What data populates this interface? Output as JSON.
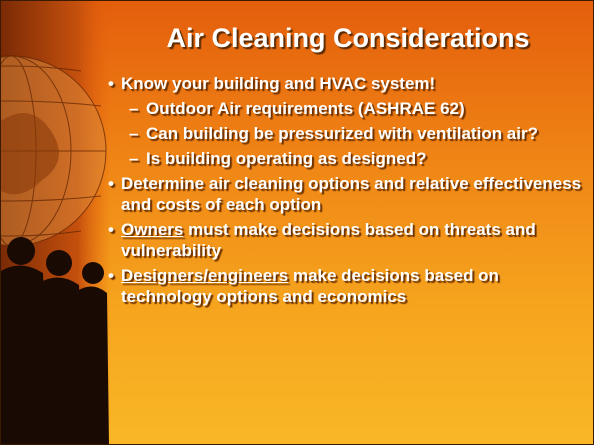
{
  "slide": {
    "title": "Air Cleaning Considerations",
    "bullets": [
      {
        "text": "Know your building and HVAC system!",
        "sub": [
          {
            "text": "Outdoor Air requirements (ASHRAE 62)"
          },
          {
            "text": "Can building be pressurized with ventilation air?"
          },
          {
            "text": "Is building operating as designed?"
          }
        ]
      },
      {
        "text": "Determine air cleaning options and relative effectiveness and costs of each option"
      },
      {
        "underlined": "Owners",
        "text": " must make decisions based on threats and vulnerability"
      },
      {
        "underlined": "Designers/engineers",
        "text": " make decisions based on technology options and economics"
      }
    ]
  }
}
